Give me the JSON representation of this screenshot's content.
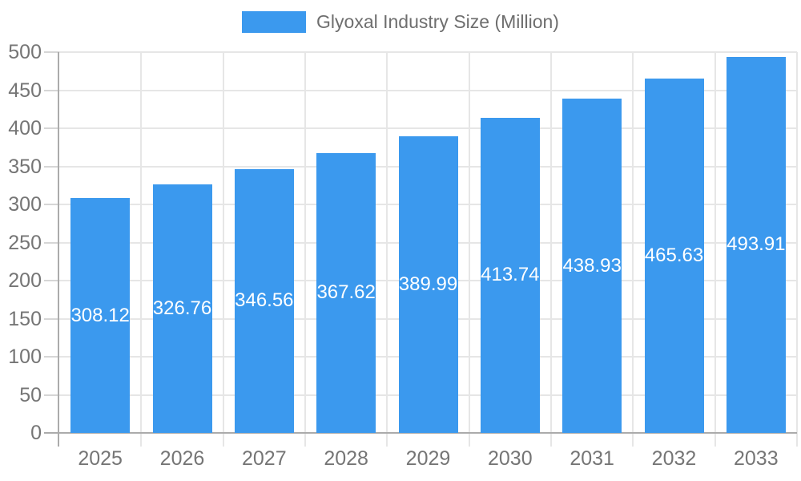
{
  "chart_data": {
    "type": "bar",
    "title": "Glyoxal Industry Size (Million)",
    "legend_entries": [
      "Glyoxal Industry Size (Million)"
    ],
    "legend_position": "top-center",
    "categories": [
      "2025",
      "2026",
      "2027",
      "2028",
      "2029",
      "2030",
      "2031",
      "2032",
      "2033"
    ],
    "values": [
      308.12,
      326.76,
      346.56,
      367.62,
      389.99,
      413.74,
      438.93,
      465.63,
      493.91
    ],
    "value_labels": [
      "308.12",
      "326.76",
      "346.56",
      "367.62",
      "389.99",
      "413.74",
      "438.93",
      "465.63",
      "493.91"
    ],
    "xlabel": "",
    "ylabel": "",
    "ylim": [
      0,
      500
    ],
    "ytick_step": 50,
    "ytick_labels": [
      "0",
      "50",
      "100",
      "150",
      "200",
      "250",
      "300",
      "350",
      "400",
      "450",
      "500"
    ],
    "grid": true,
    "colors": {
      "bar": "#3B99EE",
      "bar_value_text": "#FFFFFF",
      "axis_line": "#ABABAB",
      "gridline": "#E6E6E6",
      "tick": "#D6D6D6",
      "axis_text": "#757575",
      "legend_text": "#6E6E6E",
      "background": "#FFFFFF"
    }
  }
}
